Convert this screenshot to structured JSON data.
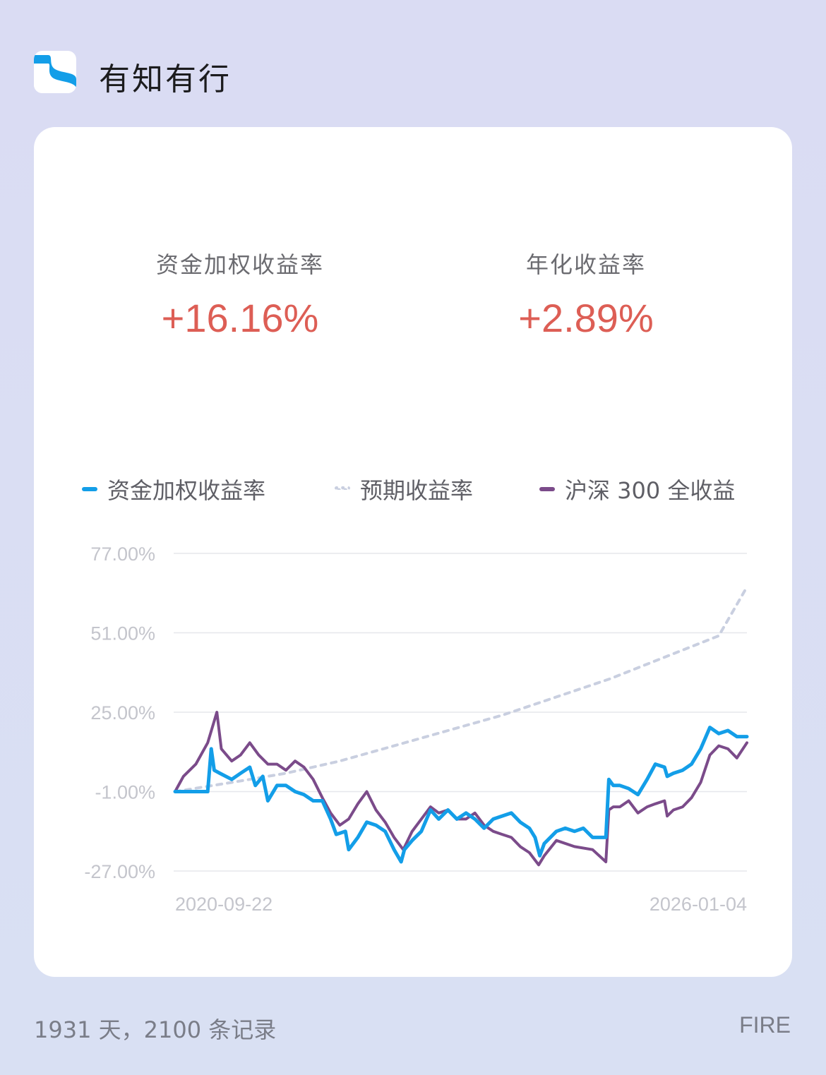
{
  "app": {
    "title": "有知有行"
  },
  "stats": [
    {
      "label": "资金加权收益率",
      "value": "+16.16%"
    },
    {
      "label": "年化收益率",
      "value": "+2.89%"
    }
  ],
  "footer": {
    "summary": "1931 天，2100 条记录",
    "tag": "FIRE"
  },
  "colors": {
    "accent_red": "#dd5e55",
    "fund": "#139ee8",
    "expected": "#c9cfe0",
    "csi300": "#7b4b8a"
  },
  "chart_data": {
    "type": "line",
    "xlim": [
      "2020-09-22",
      "2026-01-04"
    ],
    "x_tick_labels": [
      "2020-09-22",
      "2026-01-04"
    ],
    "ylim": [
      -27,
      77
    ],
    "y_ticks": [
      77,
      51,
      25,
      -1,
      -27
    ],
    "y_tick_labels": [
      "77.00%",
      "51.00%",
      "25.00%",
      "-1.00%",
      "-27.00%"
    ],
    "grid": true,
    "legend": "top",
    "series": [
      {
        "name": "资金加权收益率",
        "color": "#139ee8",
        "style": "solid",
        "points": [
          [
            "2020-09-22",
            -1
          ],
          [
            "2020-10-20",
            -1
          ],
          [
            "2020-12-10",
            -1
          ],
          [
            "2021-01-10",
            -1
          ],
          [
            "2021-01-22",
            13
          ],
          [
            "2021-02-01",
            6
          ],
          [
            "2021-02-20",
            5
          ],
          [
            "2021-04-01",
            3
          ],
          [
            "2021-05-01",
            5
          ],
          [
            "2021-06-01",
            7
          ],
          [
            "2021-06-20",
            1
          ],
          [
            "2021-07-15",
            4
          ],
          [
            "2021-08-01",
            -4
          ],
          [
            "2021-09-01",
            1
          ],
          [
            "2021-10-01",
            1
          ],
          [
            "2021-11-01",
            -1
          ],
          [
            "2021-12-01",
            -2
          ],
          [
            "2022-01-01",
            -4
          ],
          [
            "2022-02-01",
            -4
          ],
          [
            "2022-03-01",
            -10
          ],
          [
            "2022-03-20",
            -15
          ],
          [
            "2022-04-20",
            -14
          ],
          [
            "2022-05-01",
            -20
          ],
          [
            "2022-06-01",
            -16
          ],
          [
            "2022-07-01",
            -11
          ],
          [
            "2022-08-01",
            -12
          ],
          [
            "2022-09-01",
            -14
          ],
          [
            "2022-10-01",
            -20
          ],
          [
            "2022-10-25",
            -24
          ],
          [
            "2022-11-05",
            -20
          ],
          [
            "2022-12-01",
            -17
          ],
          [
            "2023-01-01",
            -14
          ],
          [
            "2023-02-01",
            -7
          ],
          [
            "2023-03-01",
            -10
          ],
          [
            "2023-04-01",
            -7
          ],
          [
            "2023-05-01",
            -10
          ],
          [
            "2023-06-01",
            -8
          ],
          [
            "2023-07-01",
            -10
          ],
          [
            "2023-08-01",
            -13
          ],
          [
            "2023-09-01",
            -10
          ],
          [
            "2023-10-01",
            -9
          ],
          [
            "2023-11-01",
            -8
          ],
          [
            "2023-12-01",
            -11
          ],
          [
            "2024-01-01",
            -13
          ],
          [
            "2024-01-20",
            -16
          ],
          [
            "2024-02-05",
            -22
          ],
          [
            "2024-02-20",
            -18
          ],
          [
            "2024-04-01",
            -14
          ],
          [
            "2024-05-01",
            -13
          ],
          [
            "2024-06-01",
            -14
          ],
          [
            "2024-07-01",
            -13
          ],
          [
            "2024-08-01",
            -16
          ],
          [
            "2024-09-15",
            -16
          ],
          [
            "2024-09-25",
            3
          ],
          [
            "2024-10-10",
            1
          ],
          [
            "2024-11-01",
            1
          ],
          [
            "2024-12-01",
            0
          ],
          [
            "2025-01-01",
            -2
          ],
          [
            "2025-02-01",
            3
          ],
          [
            "2025-03-01",
            8
          ],
          [
            "2025-04-01",
            7
          ],
          [
            "2025-04-10",
            4
          ],
          [
            "2025-05-01",
            5
          ],
          [
            "2025-06-01",
            6
          ],
          [
            "2025-07-01",
            8
          ],
          [
            "2025-08-01",
            13
          ],
          [
            "2025-09-01",
            20
          ],
          [
            "2025-10-01",
            18
          ],
          [
            "2025-11-01",
            19
          ],
          [
            "2025-12-01",
            17
          ],
          [
            "2026-01-04",
            17
          ]
        ]
      },
      {
        "name": "预期收益率",
        "color": "#c9cfe0",
        "style": "dotted",
        "points": [
          [
            "2020-09-22",
            -1
          ],
          [
            "2021-04-01",
            2
          ],
          [
            "2021-10-01",
            5
          ],
          [
            "2022-04-01",
            9
          ],
          [
            "2022-10-01",
            14
          ],
          [
            "2023-04-01",
            19
          ],
          [
            "2023-10-01",
            24
          ],
          [
            "2024-04-01",
            30
          ],
          [
            "2024-10-01",
            36
          ],
          [
            "2025-04-01",
            43
          ],
          [
            "2025-10-01",
            50
          ],
          [
            "2026-01-04",
            66
          ]
        ]
      },
      {
        "name": "沪深 300 全收益",
        "color": "#7b4b8a",
        "style": "solid",
        "points": [
          [
            "2020-09-22",
            -1
          ],
          [
            "2020-10-20",
            4
          ],
          [
            "2020-12-01",
            8
          ],
          [
            "2021-01-10",
            15
          ],
          [
            "2021-02-10",
            25
          ],
          [
            "2021-02-25",
            13
          ],
          [
            "2021-04-01",
            9
          ],
          [
            "2021-05-01",
            11
          ],
          [
            "2021-06-01",
            15
          ],
          [
            "2021-07-01",
            11
          ],
          [
            "2021-08-01",
            8
          ],
          [
            "2021-09-01",
            8
          ],
          [
            "2021-10-01",
            6
          ],
          [
            "2021-11-01",
            9
          ],
          [
            "2021-12-01",
            7
          ],
          [
            "2022-01-01",
            3
          ],
          [
            "2022-02-01",
            -3
          ],
          [
            "2022-03-01",
            -8
          ],
          [
            "2022-04-01",
            -12
          ],
          [
            "2022-05-01",
            -10
          ],
          [
            "2022-06-01",
            -5
          ],
          [
            "2022-07-01",
            -1
          ],
          [
            "2022-08-01",
            -7
          ],
          [
            "2022-09-01",
            -11
          ],
          [
            "2022-10-01",
            -16
          ],
          [
            "2022-11-01",
            -20
          ],
          [
            "2022-12-01",
            -14
          ],
          [
            "2023-01-01",
            -10
          ],
          [
            "2023-02-01",
            -6
          ],
          [
            "2023-03-01",
            -8
          ],
          [
            "2023-04-01",
            -7
          ],
          [
            "2023-05-01",
            -10
          ],
          [
            "2023-06-01",
            -10
          ],
          [
            "2023-07-01",
            -8
          ],
          [
            "2023-08-01",
            -12
          ],
          [
            "2023-09-01",
            -14
          ],
          [
            "2023-10-01",
            -15
          ],
          [
            "2023-11-01",
            -16
          ],
          [
            "2023-12-01",
            -19
          ],
          [
            "2024-01-01",
            -21
          ],
          [
            "2024-02-01",
            -25
          ],
          [
            "2024-02-20",
            -22
          ],
          [
            "2024-04-01",
            -17
          ],
          [
            "2024-06-01",
            -19
          ],
          [
            "2024-08-01",
            -20
          ],
          [
            "2024-09-15",
            -24
          ],
          [
            "2024-09-25",
            -7
          ],
          [
            "2024-10-10",
            -6
          ],
          [
            "2024-11-01",
            -6
          ],
          [
            "2024-12-01",
            -4
          ],
          [
            "2025-01-01",
            -8
          ],
          [
            "2025-02-01",
            -6
          ],
          [
            "2025-03-01",
            -5
          ],
          [
            "2025-04-01",
            -4
          ],
          [
            "2025-04-10",
            -9
          ],
          [
            "2025-05-01",
            -7
          ],
          [
            "2025-06-01",
            -6
          ],
          [
            "2025-07-01",
            -3
          ],
          [
            "2025-08-01",
            2
          ],
          [
            "2025-09-01",
            11
          ],
          [
            "2025-10-01",
            14
          ],
          [
            "2025-11-01",
            13
          ],
          [
            "2025-12-01",
            10
          ],
          [
            "2026-01-04",
            15
          ]
        ]
      }
    ]
  }
}
